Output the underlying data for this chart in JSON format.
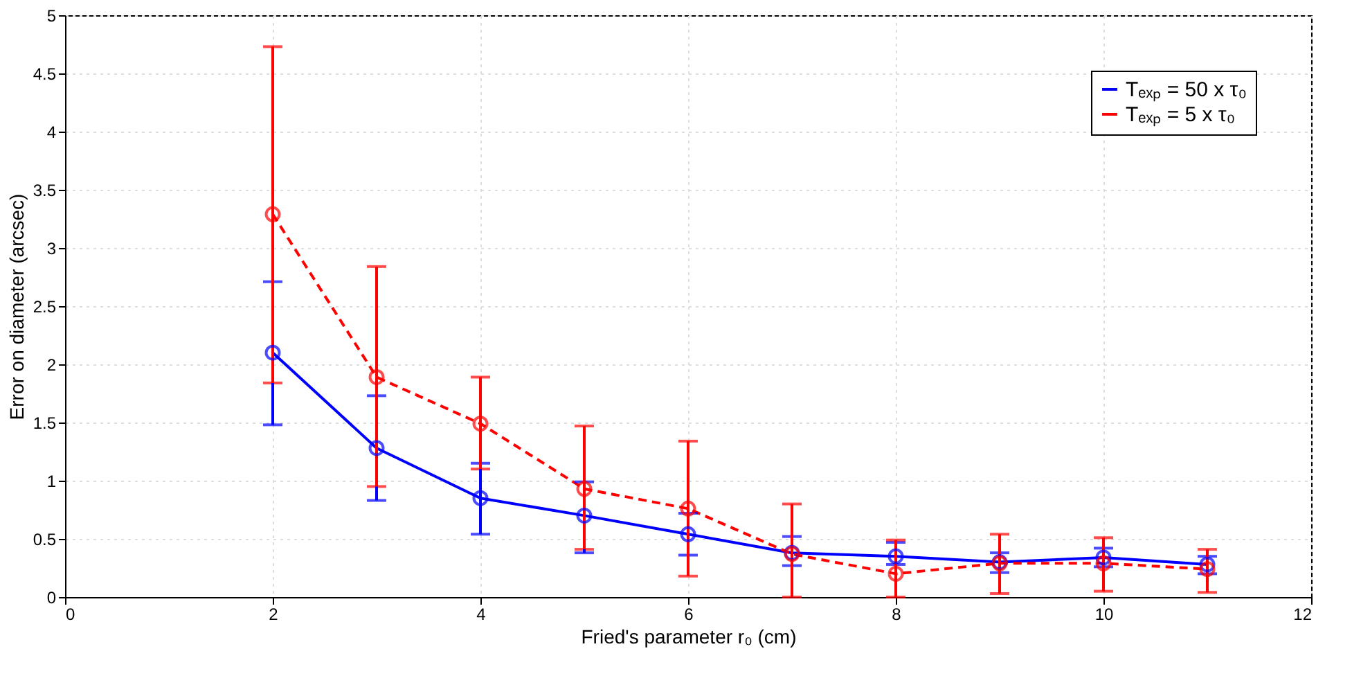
{
  "chart_data": {
    "type": "line",
    "xlabel": "Fried's parameter r₀ (cm)",
    "ylabel": "Error on diameter (arcsec)",
    "xlim": [
      0,
      12
    ],
    "xticks": [
      0,
      2,
      4,
      6,
      8,
      10,
      12
    ],
    "ylim": [
      0,
      5
    ],
    "yticks": [
      0,
      0.5,
      1,
      1.5,
      2,
      2.5,
      3,
      3.5,
      4,
      4.5,
      5
    ],
    "grid": true,
    "legend": "top right",
    "marker": "circle",
    "series": [
      {
        "name": "Tₑₓₚ = 50 x τ₀",
        "color": "#0000ff",
        "line_style": "solid",
        "x": [
          2,
          3,
          4,
          5,
          6,
          7,
          8,
          9,
          10,
          11
        ],
        "values": [
          2.1,
          1.28,
          0.85,
          0.7,
          0.54,
          0.38,
          0.35,
          0.3,
          0.34,
          0.28
        ],
        "errors": [
          [
            1.48,
            2.71
          ],
          [
            0.83,
            1.73
          ],
          [
            0.54,
            1.15
          ],
          [
            0.38,
            0.99
          ],
          [
            0.36,
            0.72
          ],
          [
            0.27,
            0.52
          ],
          [
            0.28,
            0.47
          ],
          [
            0.21,
            0.38
          ],
          [
            0.26,
            0.42
          ],
          [
            0.2,
            0.35
          ]
        ]
      },
      {
        "name": "Tₑₓₚ = 5 x τ₀",
        "color": "#ff0000",
        "line_style": "dashed",
        "x": [
          2,
          3,
          4,
          5,
          6,
          7,
          8,
          9,
          10,
          11
        ],
        "values": [
          3.29,
          1.89,
          1.49,
          0.93,
          0.76,
          0.37,
          0.2,
          0.29,
          0.29,
          0.24
        ],
        "errors": [
          [
            1.84,
            4.73
          ],
          [
            0.95,
            2.84
          ],
          [
            1.1,
            1.89
          ],
          [
            0.41,
            1.47
          ],
          [
            0.18,
            1.34
          ],
          [
            0.0,
            0.8
          ],
          [
            0.0,
            0.49
          ],
          [
            0.03,
            0.54
          ],
          [
            0.05,
            0.51
          ],
          [
            0.04,
            0.41
          ]
        ]
      }
    ]
  }
}
